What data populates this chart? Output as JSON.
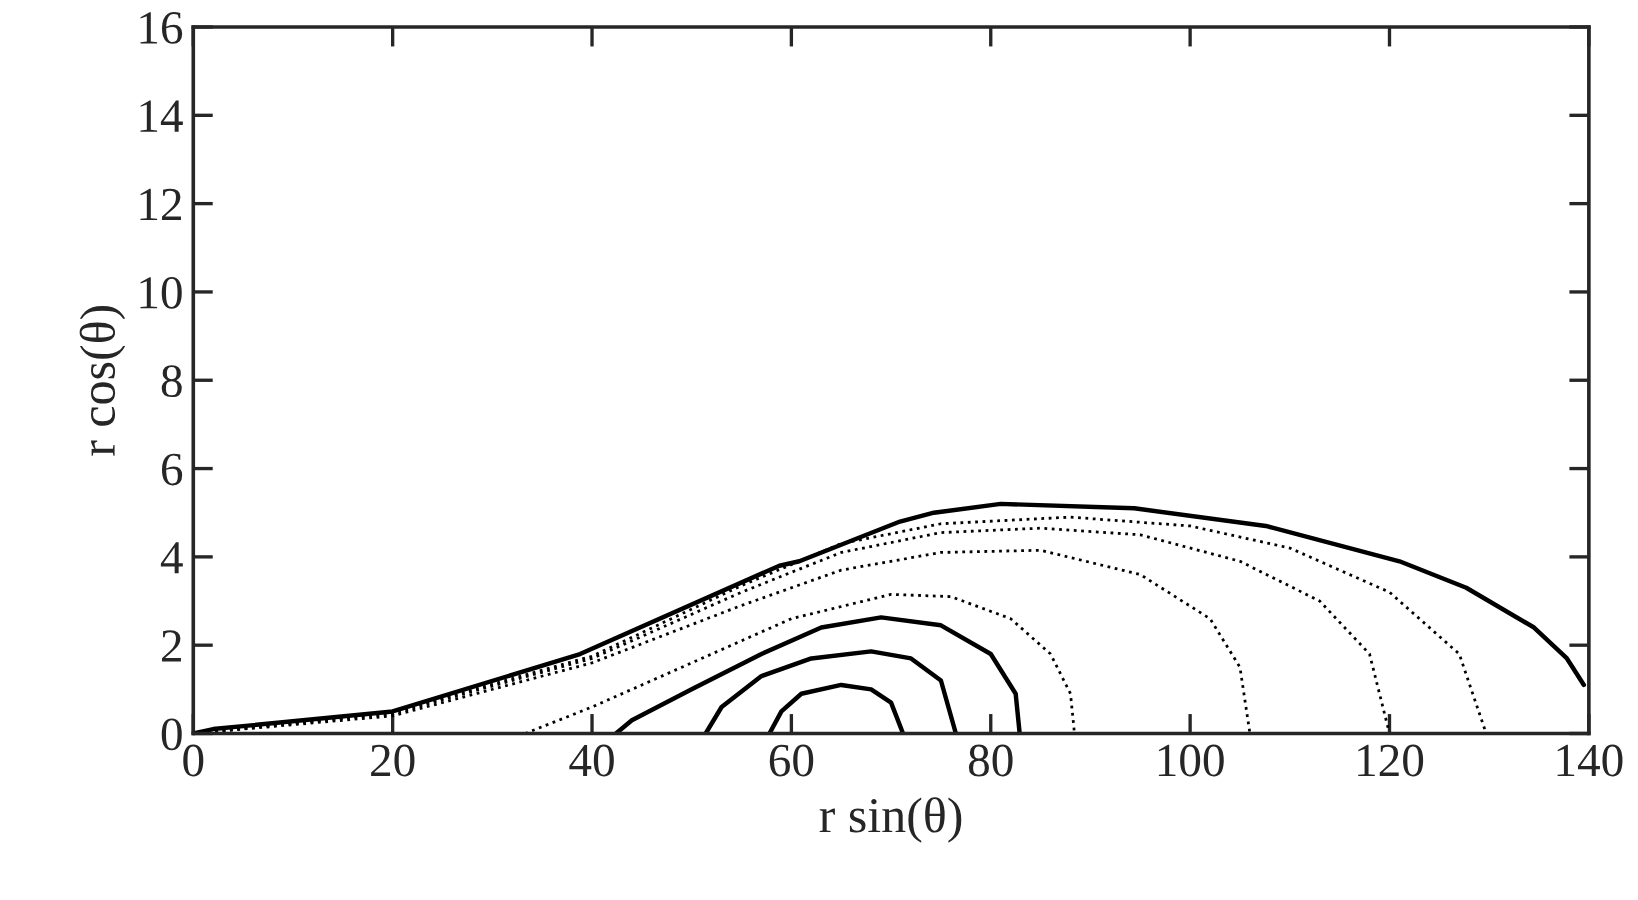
{
  "chart_data": {
    "type": "line",
    "xlabel": "r sin(θ)",
    "ylabel": "r cos(θ)",
    "xlim": [
      0,
      140
    ],
    "ylim": [
      0,
      16
    ],
    "xticks": [
      0,
      20,
      40,
      60,
      80,
      100,
      120,
      140
    ],
    "yticks": [
      0,
      2,
      4,
      6,
      8,
      10,
      12,
      14,
      16
    ],
    "grid": false,
    "marker": "none",
    "series": [
      {
        "color": "#000000",
        "line_style": "solid",
        "x": [
          57.8,
          59,
          61,
          65,
          68,
          70,
          71.2
        ],
        "values": [
          0,
          0.5,
          0.9,
          1.1,
          1.0,
          0.7,
          0
        ]
      },
      {
        "color": "#000000",
        "line_style": "solid",
        "x": [
          51.4,
          53,
          57,
          62,
          68,
          72,
          75,
          76.5
        ],
        "values": [
          0,
          0.6,
          1.3,
          1.7,
          1.86,
          1.7,
          1.2,
          0
        ]
      },
      {
        "color": "#000000",
        "line_style": "solid",
        "x": [
          42.4,
          44,
          50,
          57,
          63,
          69,
          75,
          80,
          82.5,
          82.9
        ],
        "values": [
          0,
          0.3,
          1.0,
          1.8,
          2.4,
          2.63,
          2.45,
          1.8,
          0.9,
          0
        ]
      },
      {
        "color": "#000000",
        "line_style": "dotted",
        "x": [
          33.3,
          40,
          50,
          60,
          70,
          76,
          82,
          86,
          88,
          88.4
        ],
        "values": [
          0,
          0.6,
          1.6,
          2.6,
          3.15,
          3.1,
          2.6,
          1.8,
          0.9,
          0
        ]
      },
      {
        "color": "#000000",
        "line_style": "dotted",
        "x": [
          0,
          20,
          40,
          55,
          65,
          75,
          85,
          95,
          102,
          105,
          106
        ],
        "values": [
          0,
          0.4,
          1.6,
          2.9,
          3.7,
          4.1,
          4.15,
          3.6,
          2.6,
          1.5,
          0
        ]
      },
      {
        "color": "#000000",
        "line_style": "dotted",
        "x": [
          0,
          20,
          40,
          55,
          65,
          75,
          85,
          95,
          105,
          113,
          118,
          120
        ],
        "values": [
          0,
          0.45,
          1.7,
          3.2,
          4.1,
          4.55,
          4.65,
          4.5,
          3.9,
          3.0,
          1.8,
          0
        ]
      },
      {
        "color": "#000000",
        "line_style": "dotted",
        "x": [
          0,
          20,
          40,
          55,
          65,
          75,
          88,
          100,
          110,
          120,
          127,
          129.7
        ],
        "values": [
          0,
          0.48,
          1.75,
          3.35,
          4.3,
          4.75,
          4.9,
          4.7,
          4.2,
          3.2,
          1.8,
          0
        ]
      },
      {
        "color": "#000000",
        "line_style": "solid",
        "x": [
          0,
          2,
          20,
          38.8,
          58.8,
          60.8,
          70.9,
          74.3,
          81,
          94.4,
          107.6,
          121,
          127.7,
          134.5,
          137.8,
          139.5
        ],
        "values": [
          0,
          0.1,
          0.5,
          1.8,
          3.8,
          3.9,
          4.8,
          5.0,
          5.2,
          5.1,
          4.7,
          3.9,
          3.3,
          2.4,
          1.7,
          1.1
        ]
      }
    ]
  }
}
